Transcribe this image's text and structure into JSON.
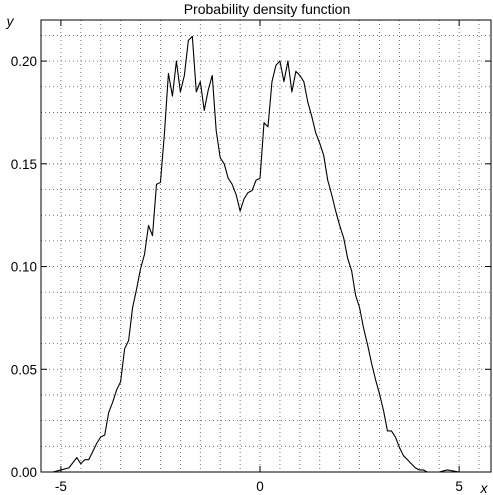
{
  "chart_data": {
    "type": "line",
    "title": "Probability density function",
    "xlabel": "x",
    "ylabel": "y",
    "xlim": [
      -5.5,
      5.8
    ],
    "ylim": [
      0,
      0.22
    ],
    "x_ticks": [
      -5,
      0,
      5
    ],
    "x_tick_labels": [
      "-5",
      "0",
      "5"
    ],
    "y_ticks": [
      0,
      0.05,
      0.1,
      0.15,
      0.2
    ],
    "y_tick_labels": [
      "0.00",
      "0.05",
      "0.10",
      "0.15",
      "0.20"
    ],
    "x_grid_step": 0.5,
    "y_grid_step": 0.0125,
    "grid": true,
    "legend": "none",
    "line_color": "#000000",
    "grid_color": "#555555",
    "series": [
      {
        "x": [
          -5.5,
          -5.2,
          -5.0,
          -4.8,
          -4.6,
          -4.5,
          -4.4,
          -4.3,
          -4.2,
          -4.1,
          -4.0,
          -3.9,
          -3.8,
          -3.7,
          -3.6,
          -3.5,
          -3.4,
          -3.3,
          -3.2,
          -3.1,
          -3.0,
          -2.9,
          -2.8,
          -2.7,
          -2.6,
          -2.5,
          -2.4,
          -2.3,
          -2.2,
          -2.1,
          -2.0,
          -1.9,
          -1.8,
          -1.7,
          -1.6,
          -1.5,
          -1.4,
          -1.3,
          -1.2,
          -1.1,
          -1.0,
          -0.9,
          -0.8,
          -0.7,
          -0.6,
          -0.5,
          -0.4,
          -0.3,
          -0.2,
          -0.1,
          0.0,
          0.1,
          0.2,
          0.3,
          0.4,
          0.5,
          0.6,
          0.7,
          0.8,
          0.9,
          1.0,
          1.1,
          1.2,
          1.3,
          1.4,
          1.5,
          1.6,
          1.7,
          1.8,
          1.9,
          2.0,
          2.1,
          2.2,
          2.3,
          2.4,
          2.5,
          2.6,
          2.7,
          2.8,
          2.9,
          3.0,
          3.1,
          3.2,
          3.3,
          3.4,
          3.5,
          3.6,
          3.7,
          3.8,
          3.9,
          4.0,
          4.1,
          4.2,
          4.3,
          4.4,
          4.5,
          4.7,
          5.0,
          5.2,
          5.5
        ],
        "y": [
          0.0,
          0.0,
          0.001,
          0.002,
          0.007,
          0.004,
          0.006,
          0.006,
          0.01,
          0.014,
          0.017,
          0.018,
          0.029,
          0.034,
          0.04,
          0.044,
          0.06,
          0.064,
          0.08,
          0.089,
          0.099,
          0.106,
          0.12,
          0.115,
          0.14,
          0.141,
          0.165,
          0.194,
          0.183,
          0.2,
          0.185,
          0.193,
          0.21,
          0.212,
          0.185,
          0.19,
          0.176,
          0.186,
          0.193,
          0.166,
          0.153,
          0.15,
          0.143,
          0.14,
          0.135,
          0.127,
          0.133,
          0.136,
          0.137,
          0.142,
          0.143,
          0.17,
          0.168,
          0.19,
          0.198,
          0.2,
          0.19,
          0.2,
          0.185,
          0.195,
          0.193,
          0.19,
          0.18,
          0.173,
          0.165,
          0.16,
          0.154,
          0.142,
          0.135,
          0.127,
          0.12,
          0.114,
          0.104,
          0.098,
          0.086,
          0.08,
          0.07,
          0.062,
          0.053,
          0.045,
          0.038,
          0.03,
          0.02,
          0.02,
          0.017,
          0.012,
          0.008,
          0.006,
          0.004,
          0.002,
          0.001,
          0.001,
          0.0,
          0.0,
          0.0,
          0.0,
          0.001,
          0.0,
          0.0,
          0.0
        ]
      }
    ]
  }
}
